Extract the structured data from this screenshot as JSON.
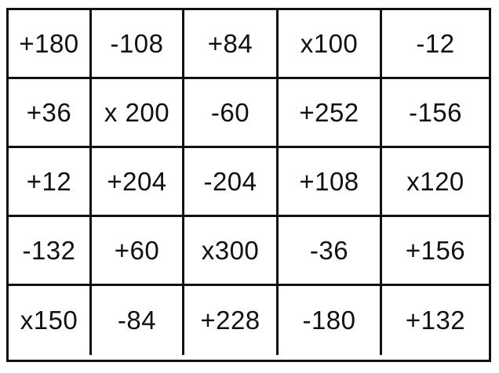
{
  "grid": {
    "rows": [
      [
        "+180",
        "-108",
        "+84",
        "x100",
        "-12"
      ],
      [
        "+36",
        "x 200",
        "-60",
        "+252",
        "-156"
      ],
      [
        "+12",
        "+204",
        "-204",
        "+108",
        "x120"
      ],
      [
        "-132",
        "+60",
        "x300",
        "-36",
        "+156"
      ],
      [
        "x150",
        "-84",
        "+228",
        "-180",
        "+132"
      ]
    ]
  }
}
